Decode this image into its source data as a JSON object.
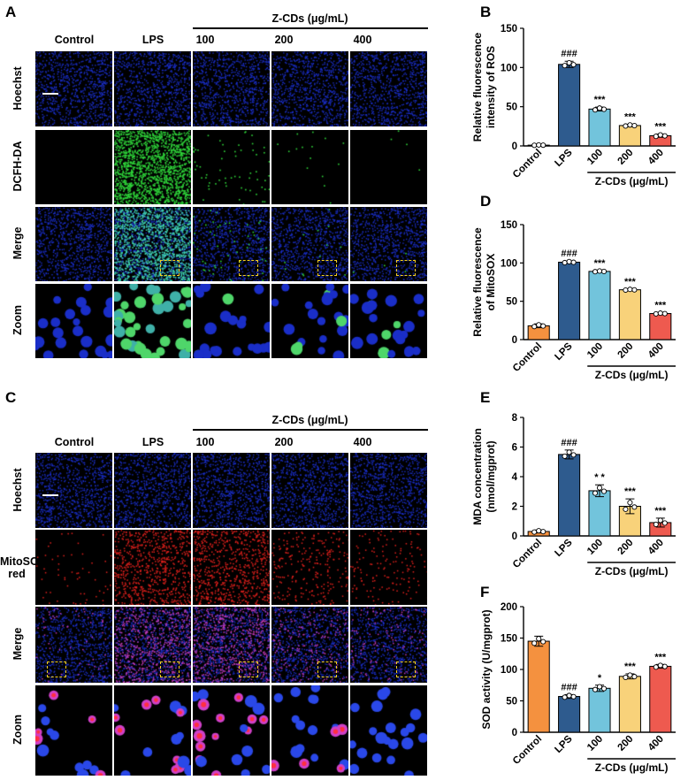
{
  "panels": {
    "A": "A",
    "B": "B",
    "C": "C",
    "D": "D",
    "E": "E",
    "F": "F"
  },
  "micrographs": {
    "column_labels": [
      "Control",
      "LPS",
      "100",
      "200",
      "400"
    ],
    "group_header": "Z-CDs (μg/mL)",
    "panel_A_rows": [
      "Hoechst",
      "DCFH-DA",
      "Merge",
      "Zoom"
    ],
    "panel_C_rows": [
      "Hoechst",
      "MitoSOX red",
      "Merge",
      "Zoom"
    ],
    "colors": {
      "hoechst": "#1a2ec8",
      "dcfh": "#2fd63a",
      "mitosox": "#e0201c"
    }
  },
  "chart_data": [
    {
      "id": "B",
      "type": "bar",
      "categories": [
        "Control",
        "LPS",
        "100",
        "200",
        "400"
      ],
      "values": [
        1,
        104,
        47,
        26,
        13
      ],
      "errors": [
        0.5,
        4,
        2.5,
        1.5,
        2
      ],
      "significance": [
        "",
        "###",
        "***",
        "***",
        "***"
      ],
      "ylabel": "Relative fluorescence intensity of ROS",
      "ylabel_lines": [
        "Relative fluorescence",
        "intensity of ROS"
      ],
      "ylim": [
        0,
        150
      ],
      "yticks": [
        0,
        50,
        100,
        150
      ],
      "group_label": "Z-CDs (μg/mL)",
      "colors": [
        "#ffffff",
        "#2e5b8e",
        "#72c4dc",
        "#f8d27a",
        "#ee5a4f"
      ]
    },
    {
      "id": "D",
      "type": "bar",
      "categories": [
        "Control",
        "LPS",
        "100",
        "200",
        "400"
      ],
      "values": [
        18,
        101,
        89,
        65,
        34
      ],
      "errors": [
        2.5,
        1.5,
        1,
        1,
        1
      ],
      "significance": [
        "",
        "###",
        "***",
        "***",
        "***"
      ],
      "ylabel": "Relative fluorescence of MitoSOX",
      "ylabel_lines": [
        "Relative fluorescence",
        "of MitoSOX"
      ],
      "ylim": [
        0,
        150
      ],
      "yticks": [
        0,
        50,
        100,
        150
      ],
      "group_label": "Z-CDs (μg/mL)",
      "colors": [
        "#f4913f",
        "#2e5b8e",
        "#72c4dc",
        "#f8d27a",
        "#ee5a4f"
      ]
    },
    {
      "id": "E",
      "type": "bar",
      "categories": [
        "Control",
        "LPS",
        "100",
        "200",
        "400"
      ],
      "values": [
        0.3,
        5.5,
        3.05,
        2.0,
        0.9
      ],
      "errors": [
        0.1,
        0.3,
        0.4,
        0.5,
        0.3
      ],
      "significance": [
        "",
        "###",
        "* *",
        "***",
        "***"
      ],
      "ylabel": "MDA concentration (nmol/mgprot)",
      "ylabel_lines": [
        "MDA concentration",
        "(nmol/mgprot)"
      ],
      "ylim": [
        0,
        8
      ],
      "yticks": [
        0,
        2,
        4,
        6,
        8
      ],
      "group_label": "Z-CDs (μg/mL)",
      "colors": [
        "#f4913f",
        "#2e5b8e",
        "#72c4dc",
        "#f8d27a",
        "#ee5a4f"
      ]
    },
    {
      "id": "F",
      "type": "bar",
      "categories": [
        "Control",
        "LPS",
        "100",
        "200",
        "400"
      ],
      "values": [
        145,
        57,
        70,
        89,
        105
      ],
      "errors": [
        8,
        3,
        5,
        4,
        3
      ],
      "significance": [
        "",
        "###",
        "*",
        "***",
        "***"
      ],
      "ylabel": "SOD activity (U/mgprot)",
      "ylabel_lines": [
        "SOD activity (U/mgprot)"
      ],
      "ylim": [
        0,
        200
      ],
      "yticks": [
        0,
        50,
        100,
        150,
        200
      ],
      "group_label": "Z-CDs (μg/mL)",
      "colors": [
        "#f4913f",
        "#2e5b8e",
        "#72c4dc",
        "#f8d27a",
        "#ee5a4f"
      ]
    }
  ]
}
